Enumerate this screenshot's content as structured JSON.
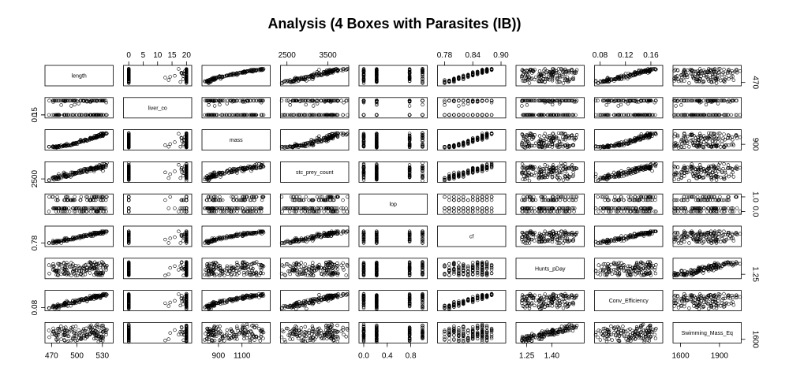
{
  "chart_data": {
    "type": "scatter",
    "title": "Analysis (4 Boxes with Parasites (IB))",
    "variables": [
      {
        "name": "length",
        "range": [
          465,
          540
        ],
        "ticks": [
          "470",
          "500",
          "530"
        ],
        "tick_values": [
          470,
          500,
          530
        ],
        "tick_side": "bottom"
      },
      {
        "name": "liver_co",
        "range": [
          -1,
          21
        ],
        "ticks": [
          "0",
          "5",
          "10",
          "15",
          "20"
        ],
        "tick_values": [
          0,
          5,
          10,
          15,
          20
        ],
        "tick_side": "top"
      },
      {
        "name": "mass",
        "range": [
          780,
          1320
        ],
        "ticks": [
          "900",
          "1100"
        ],
        "tick_values": [
          900,
          1100
        ],
        "tick_side": "bottom"
      },
      {
        "name": "stc_prey_count",
        "range": [
          2400,
          3950
        ],
        "ticks": [
          "2500",
          "3500"
        ],
        "tick_values": [
          2500,
          3500
        ],
        "tick_side": "top"
      },
      {
        "name": "lop",
        "range": [
          -0.04,
          1.04
        ],
        "ticks": [
          "0.0",
          "0.4",
          "0.8"
        ],
        "tick_values": [
          0.0,
          0.4,
          0.8
        ],
        "tick_side": "bottom"
      },
      {
        "name": "cf",
        "range": [
          0.77,
          0.905
        ],
        "ticks": [
          "0.78",
          "0.84",
          "0.90"
        ],
        "tick_values": [
          0.78,
          0.84,
          0.9
        ],
        "tick_side": "top"
      },
      {
        "name": "Hunts_pDay",
        "range": [
          1.2,
          1.58
        ],
        "ticks": [
          "1.25",
          "1.40"
        ],
        "tick_values": [
          1.25,
          1.4
        ],
        "tick_side": "bottom"
      },
      {
        "name": "Conv_Efficiency",
        "range": [
          0.075,
          0.175
        ],
        "ticks": [
          "0.08",
          "0.12",
          "0.16"
        ],
        "tick_values": [
          0.08,
          0.12,
          0.16
        ],
        "tick_side": "top"
      },
      {
        "name": "Swimming_Mass_Eq",
        "range": [
          1560,
          2050
        ],
        "ticks": [
          "1600",
          "1900"
        ],
        "tick_values": [
          1600,
          1900
        ],
        "tick_side": "bottom"
      }
    ],
    "left_ticks": [
      {
        "row": 1,
        "labels": [
          "0",
          "0.15"
        ],
        "values": [
          0,
          0.15
        ]
      },
      {
        "row": 3,
        "labels": [
          "2500"
        ],
        "values": [
          2500
        ]
      },
      {
        "row": 5,
        "labels": [
          "0.78"
        ],
        "values": [
          0.78
        ]
      },
      {
        "row": 7,
        "labels": [
          "0.08"
        ],
        "values": [
          0.08
        ]
      }
    ],
    "right_ticks": [
      {
        "row": 0,
        "labels": [
          "470"
        ],
        "values": [
          470
        ]
      },
      {
        "row": 2,
        "labels": [
          "900"
        ],
        "values": [
          900
        ]
      },
      {
        "row": 4,
        "labels": [
          "0.0",
          "1.0"
        ],
        "values": [
          0.0,
          1.0
        ]
      },
      {
        "row": 6,
        "labels": [
          "1.25"
        ],
        "values": [
          1.25
        ]
      },
      {
        "row": 8,
        "labels": [
          "1600"
        ],
        "values": [
          1600
        ]
      }
    ],
    "diagonal": "variable names",
    "point_shape": "open circle",
    "n_points": 150,
    "grid": false,
    "legend": "none"
  }
}
